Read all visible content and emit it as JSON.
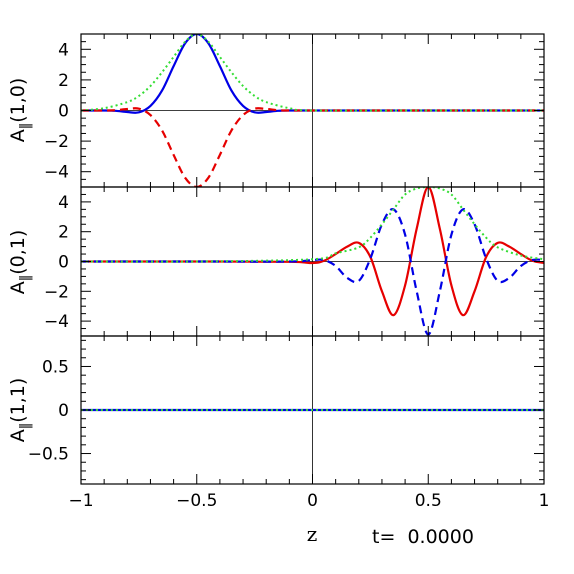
{
  "chart_data": [
    {
      "type": "line",
      "ylabel": {
        "base": "A",
        "sub": "‖",
        "args": "(1,0)"
      },
      "xlim": [
        -1,
        1
      ],
      "ylim": [
        -5,
        5
      ],
      "yticks": [
        4,
        2,
        0,
        -2,
        -4
      ],
      "ytick_labels": [
        "4",
        "2",
        "0",
        "−2",
        "−4"
      ],
      "grid": false,
      "series": [
        {
          "style": "solid",
          "color": "#0000e6",
          "x": [
            -1.0,
            -0.9,
            -0.85,
            -0.8,
            -0.75,
            -0.7,
            -0.65,
            -0.6,
            -0.55,
            -0.5,
            -0.45,
            -0.4,
            -0.35,
            -0.3,
            -0.25,
            -0.2,
            -0.15,
            -0.1,
            0.0,
            0.5,
            1.0
          ],
          "y": [
            0,
            0,
            -0.02,
            -0.1,
            -0.12,
            0.3,
            1.3,
            2.9,
            4.4,
            5.0,
            4.4,
            2.9,
            1.3,
            0.3,
            -0.12,
            -0.1,
            -0.02,
            0,
            0,
            0,
            0
          ]
        },
        {
          "style": "dashed",
          "color": "#e60000",
          "x": [
            -1.0,
            -0.9,
            -0.85,
            -0.8,
            -0.75,
            -0.7,
            -0.65,
            -0.6,
            -0.55,
            -0.5,
            -0.45,
            -0.4,
            -0.35,
            -0.3,
            -0.25,
            -0.2,
            -0.15,
            -0.1,
            0.0,
            0.5,
            1.0
          ],
          "y": [
            0,
            0,
            0.02,
            0.1,
            0.12,
            -0.3,
            -1.3,
            -2.9,
            -4.4,
            -5.0,
            -4.4,
            -2.9,
            -1.3,
            -0.3,
            0.12,
            0.1,
            0.02,
            0,
            0,
            0,
            0
          ]
        },
        {
          "style": "dotted",
          "color": "#33dd33",
          "x": [
            -1.0,
            -0.9,
            -0.8,
            -0.75,
            -0.7,
            -0.65,
            -0.6,
            -0.55,
            -0.5,
            -0.45,
            -0.4,
            -0.35,
            -0.3,
            -0.25,
            -0.2,
            -0.1,
            0.0,
            0.5,
            1.0
          ],
          "y": [
            0,
            0.15,
            0.55,
            0.95,
            1.6,
            2.5,
            3.5,
            4.5,
            5.0,
            4.5,
            3.5,
            2.5,
            1.6,
            0.95,
            0.55,
            0.15,
            0,
            0,
            0
          ]
        }
      ]
    },
    {
      "type": "line",
      "ylabel": {
        "base": "A",
        "sub": "‖",
        "args": "(0,1)"
      },
      "xlim": [
        -1,
        1
      ],
      "ylim": [
        -5,
        5
      ],
      "yticks": [
        4,
        2,
        0,
        -2,
        -4
      ],
      "ytick_labels": [
        "4",
        "2",
        "0",
        "−2",
        "−4"
      ],
      "grid": false,
      "series": [
        {
          "style": "solid",
          "color": "#e60000",
          "x": [
            -1.0,
            -0.5,
            -0.1,
            0.0,
            0.05,
            0.1,
            0.15,
            0.2,
            0.25,
            0.3,
            0.35,
            0.4,
            0.45,
            0.5,
            0.55,
            0.6,
            0.65,
            0.7,
            0.75,
            0.8,
            0.85,
            0.9,
            0.95,
            1.0
          ],
          "y": [
            0,
            0,
            -0.02,
            -0.1,
            0.05,
            0.5,
            1.0,
            1.25,
            0.3,
            -2.0,
            -3.6,
            -1.6,
            2.2,
            5.0,
            2.2,
            -1.6,
            -3.6,
            -2.0,
            0.3,
            1.25,
            1.0,
            0.5,
            0.05,
            -0.1
          ]
        },
        {
          "style": "dashed",
          "color": "#0000e6",
          "x": [
            -1.0,
            -0.5,
            -0.1,
            0.0,
            0.05,
            0.1,
            0.15,
            0.2,
            0.25,
            0.3,
            0.35,
            0.4,
            0.45,
            0.5,
            0.55,
            0.6,
            0.65,
            0.7,
            0.75,
            0.8,
            0.85,
            0.9,
            0.95,
            1.0
          ],
          "y": [
            0,
            0,
            0,
            0.1,
            0.1,
            -0.3,
            -1.1,
            -1.3,
            0.2,
            2.5,
            3.5,
            1.8,
            -2.0,
            -4.9,
            -2.0,
            1.8,
            3.5,
            2.5,
            0.2,
            -1.3,
            -1.1,
            -0.3,
            0.1,
            0.1
          ]
        },
        {
          "style": "dotted",
          "color": "#33dd33",
          "x": [
            -1.0,
            -0.5,
            0.0,
            0.1,
            0.2,
            0.25,
            0.3,
            0.35,
            0.4,
            0.45,
            0.5,
            0.55,
            0.6,
            0.65,
            0.7,
            0.75,
            0.8,
            0.9,
            1.0
          ],
          "y": [
            0,
            0,
            0.15,
            0.55,
            0.95,
            1.6,
            2.5,
            3.5,
            4.5,
            4.9,
            5.0,
            4.9,
            4.5,
            3.5,
            2.5,
            1.6,
            0.95,
            0.4,
            0.15
          ]
        }
      ]
    },
    {
      "type": "line",
      "ylabel": {
        "base": "A",
        "sub": "‖",
        "args": "(1,1)"
      },
      "xlim": [
        -1,
        1
      ],
      "ylim": [
        -0.85,
        0.85
      ],
      "yticks": [
        0.5,
        0,
        -0.5
      ],
      "ytick_labels": [
        "0.5",
        "0",
        "−0.5"
      ],
      "grid": false,
      "series": [
        {
          "style": "solid",
          "color": "#0000e6",
          "x": [
            -1.0,
            1.0
          ],
          "y": [
            0,
            0
          ]
        },
        {
          "style": "dotted",
          "color": "#33dd33",
          "x": [
            -1.0,
            1.0
          ],
          "y": [
            0,
            0
          ]
        }
      ]
    }
  ],
  "x_axis": {
    "label": "z",
    "ticks": [
      -1,
      -0.5,
      0,
      0.5,
      1
    ],
    "tick_labels": [
      "−1",
      "−0.5",
      "0",
      "0.5",
      "1"
    ]
  },
  "time_label": "t=  0.0000"
}
